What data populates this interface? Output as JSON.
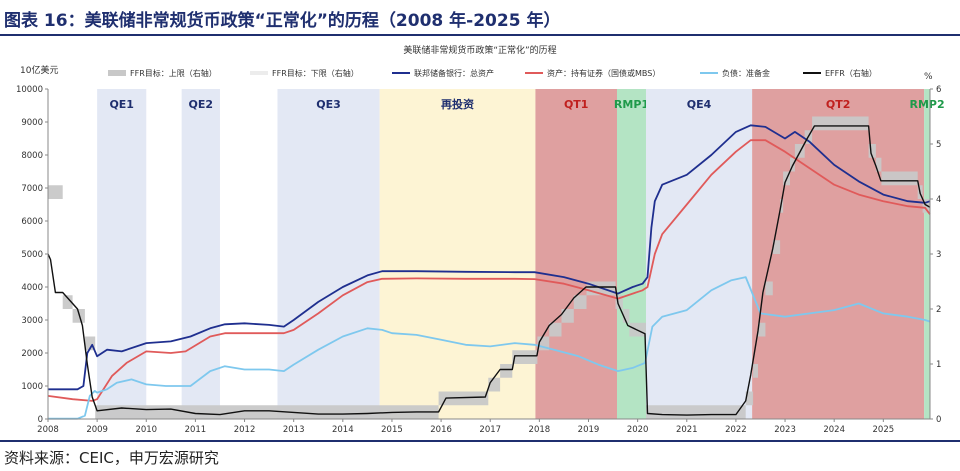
{
  "figure": {
    "title": "图表 16：美联储非常规货币政策“正常化”的历程（2008 年-2025 年）",
    "source": "资料来源：CEIC，申万宏源研究"
  },
  "colors": {
    "title": "#1f2f6f",
    "total_assets": "#1f2f8f",
    "securities": "#e05a5a",
    "reserves": "#7ec8ee",
    "effr": "#111111",
    "ffr_band": "#c8c8c8",
    "qe": "#e3e8f4",
    "reinvest": "#fdf4d4",
    "qt": "#dfa0a0",
    "rmp": "#b4e4c4"
  },
  "chart_data": {
    "type": "line",
    "title": "美联储非常规货币政策“正常化”的历程",
    "ylabel_left": "10亿美元",
    "ylabel_right": "%",
    "xlim": [
      2008.0,
      2025.95
    ],
    "ylim_left": [
      0,
      10000
    ],
    "ylim_right": [
      0,
      6
    ],
    "x_ticks": [
      "2008",
      "2009",
      "2010",
      "2011",
      "2012",
      "2013",
      "2014",
      "2015",
      "2016",
      "2017",
      "2018",
      "2019",
      "2020",
      "2021",
      "2022",
      "2023",
      "2024",
      "2025"
    ],
    "y_ticks_left": [
      "0",
      "1000",
      "2000",
      "3000",
      "4000",
      "5000",
      "6000",
      "7000",
      "8000",
      "9000",
      "10000"
    ],
    "y_ticks_right": [
      "0",
      "1",
      "2",
      "3",
      "4",
      "5",
      "6"
    ],
    "legend_position": "top",
    "periods": [
      {
        "label": "QE1",
        "start": 2009.0,
        "end": 2010.0,
        "kind": "qe"
      },
      {
        "label": "QE2",
        "start": 2010.72,
        "end": 2011.5,
        "kind": "qe"
      },
      {
        "label": "QE3",
        "start": 2012.67,
        "end": 2014.75,
        "kind": "qe"
      },
      {
        "label": "再投资",
        "start": 2014.75,
        "end": 2017.92,
        "kind": "reinvest"
      },
      {
        "label": "QT1",
        "start": 2017.92,
        "end": 2019.58,
        "kind": "qt"
      },
      {
        "label": "RMP1",
        "start": 2019.58,
        "end": 2020.17,
        "kind": "rmp"
      },
      {
        "label": "QE4",
        "start": 2020.17,
        "end": 2022.33,
        "kind": "qe"
      },
      {
        "label": "QT2",
        "start": 2022.33,
        "end": 2025.83,
        "kind": "qt"
      },
      {
        "label": "RMP2",
        "start": 2025.83,
        "end": 2025.95,
        "kind": "rmp"
      }
    ],
    "series": [
      {
        "name": "联邦储备银行：总资产",
        "axis": "left",
        "style": "line",
        "x": [
          2008.0,
          2008.6,
          2008.72,
          2008.8,
          2008.9,
          2009.0,
          2009.2,
          2009.5,
          2010.0,
          2010.5,
          2010.9,
          2011.3,
          2011.6,
          2012.0,
          2012.5,
          2012.8,
          2013.0,
          2013.5,
          2014.0,
          2014.5,
          2014.8,
          2015.5,
          2016.5,
          2017.5,
          2017.9,
          2018.5,
          2019.0,
          2019.6,
          2019.9,
          2020.1,
          2020.2,
          2020.28,
          2020.35,
          2020.5,
          2021.0,
          2021.5,
          2022.0,
          2022.3,
          2022.6,
          2023.0,
          2023.2,
          2023.5,
          2024.0,
          2024.5,
          2025.0,
          2025.5,
          2025.85,
          2025.95
        ],
        "y": [
          900,
          900,
          1000,
          2000,
          2250,
          1900,
          2100,
          2050,
          2300,
          2350,
          2500,
          2750,
          2870,
          2900,
          2850,
          2800,
          3000,
          3550,
          4000,
          4350,
          4480,
          4480,
          4460,
          4450,
          4450,
          4300,
          4100,
          3800,
          4000,
          4100,
          4300,
          5800,
          6600,
          7100,
          7400,
          8000,
          8700,
          8900,
          8850,
          8500,
          8700,
          8400,
          7700,
          7200,
          6800,
          6600,
          6550,
          6600
        ]
      },
      {
        "name": "资产：持有证券（国债或MBS）",
        "axis": "left",
        "style": "line",
        "x": [
          2008.0,
          2008.5,
          2008.9,
          2009.0,
          2009.3,
          2009.6,
          2010.0,
          2010.5,
          2010.8,
          2011.3,
          2011.6,
          2012.0,
          2012.5,
          2012.8,
          2013.0,
          2013.5,
          2014.0,
          2014.5,
          2014.8,
          2015.5,
          2016.5,
          2017.5,
          2017.9,
          2018.5,
          2019.0,
          2019.6,
          2019.9,
          2020.1,
          2020.2,
          2020.35,
          2020.5,
          2021.0,
          2021.5,
          2022.0,
          2022.3,
          2022.6,
          2023.0,
          2023.5,
          2024.0,
          2024.5,
          2025.0,
          2025.5,
          2025.85,
          2025.95
        ],
        "y": [
          700,
          600,
          550,
          600,
          1300,
          1700,
          2050,
          2000,
          2050,
          2500,
          2600,
          2600,
          2600,
          2600,
          2700,
          3200,
          3750,
          4150,
          4250,
          4260,
          4250,
          4250,
          4240,
          4100,
          3900,
          3650,
          3800,
          3900,
          4000,
          5000,
          5600,
          6500,
          7400,
          8100,
          8450,
          8450,
          8100,
          7600,
          7100,
          6800,
          6600,
          6450,
          6400,
          6200
        ]
      },
      {
        "name": "负债：准备金",
        "axis": "left",
        "style": "line",
        "x": [
          2008.0,
          2008.6,
          2008.75,
          2008.85,
          2008.95,
          2009.0,
          2009.2,
          2009.4,
          2009.7,
          2010.0,
          2010.4,
          2010.9,
          2011.3,
          2011.6,
          2012.0,
          2012.5,
          2012.8,
          2013.0,
          2013.5,
          2014.0,
          2014.5,
          2014.8,
          2015.0,
          2015.5,
          2016.0,
          2016.5,
          2017.0,
          2017.5,
          2017.9,
          2018.3,
          2018.8,
          2019.2,
          2019.6,
          2019.9,
          2020.15,
          2020.3,
          2020.5,
          2021.0,
          2021.5,
          2021.9,
          2022.2,
          2022.5,
          2023.0,
          2023.5,
          2024.0,
          2024.5,
          2025.0,
          2025.5,
          2025.85,
          2025.95
        ],
        "y": [
          10,
          10,
          100,
          700,
          850,
          800,
          900,
          1100,
          1200,
          1050,
          1000,
          1000,
          1450,
          1600,
          1500,
          1500,
          1450,
          1650,
          2100,
          2500,
          2750,
          2700,
          2600,
          2550,
          2400,
          2250,
          2200,
          2300,
          2250,
          2100,
          1900,
          1650,
          1450,
          1550,
          1700,
          2800,
          3100,
          3300,
          3900,
          4200,
          4300,
          3200,
          3100,
          3200,
          3300,
          3500,
          3200,
          3100,
          3000,
          2950
        ]
      },
      {
        "name": "EFFR（右轴）",
        "axis": "right",
        "style": "line",
        "x": [
          2008.0,
          2008.05,
          2008.15,
          2008.3,
          2008.5,
          2008.6,
          2008.7,
          2008.8,
          2008.9,
          2009.0,
          2009.5,
          2010.0,
          2010.5,
          2011.0,
          2011.5,
          2012.0,
          2012.5,
          2013.0,
          2013.5,
          2014.0,
          2014.5,
          2015.0,
          2015.5,
          2015.95,
          2016.1,
          2016.9,
          2017.0,
          2017.2,
          2017.45,
          2017.5,
          2017.95,
          2018.0,
          2018.2,
          2018.45,
          2018.7,
          2018.95,
          2019.55,
          2019.6,
          2019.8,
          2020.15,
          2020.2,
          2020.5,
          2021.0,
          2021.5,
          2022.0,
          2022.2,
          2022.3,
          2022.45,
          2022.55,
          2022.75,
          2022.9,
          2023.0,
          2023.15,
          2023.45,
          2023.6,
          2024.7,
          2024.75,
          2024.85,
          2024.95,
          2025.7,
          2025.75,
          2025.85,
          2025.95
        ],
        "y": [
          3.0,
          2.9,
          2.3,
          2.3,
          2.1,
          2.0,
          1.7,
          1.0,
          0.4,
          0.15,
          0.2,
          0.17,
          0.18,
          0.1,
          0.08,
          0.15,
          0.15,
          0.12,
          0.09,
          0.09,
          0.1,
          0.12,
          0.13,
          0.13,
          0.38,
          0.4,
          0.66,
          0.9,
          0.9,
          1.15,
          1.15,
          1.4,
          1.7,
          1.9,
          2.2,
          2.4,
          2.4,
          2.1,
          1.7,
          1.55,
          0.1,
          0.08,
          0.07,
          0.08,
          0.08,
          0.33,
          0.8,
          1.6,
          2.3,
          3.1,
          3.8,
          4.3,
          4.6,
          5.1,
          5.33,
          5.33,
          4.83,
          4.6,
          4.33,
          4.33,
          4.1,
          3.9,
          3.85
        ]
      },
      {
        "name": "FFR目标：上限（右轴）",
        "axis": "right",
        "style": "area_band",
        "lower_series": "FFR目标：下限（右轴）",
        "x": [
          2008.0,
          2008.3,
          2008.5,
          2008.75,
          2008.96,
          2015.95,
          2016.96,
          2017.2,
          2017.45,
          2017.96,
          2018.2,
          2018.45,
          2018.7,
          2018.96,
          2019.55,
          2019.7,
          2019.83,
          2020.17,
          2020.2,
          2022.2,
          2022.35,
          2022.45,
          2022.6,
          2022.75,
          2022.9,
          2022.96,
          2023.1,
          2023.2,
          2023.4,
          2023.55,
          2024.7,
          2024.85,
          2024.96,
          2025.7,
          2025.8,
          2025.95
        ],
        "y": [
          4.25,
          2.25,
          2.0,
          1.5,
          0.25,
          0.5,
          0.75,
          1.0,
          1.25,
          1.5,
          1.75,
          2.0,
          2.25,
          2.5,
          2.25,
          2.0,
          1.75,
          0.25,
          0.25,
          0.5,
          1.0,
          1.75,
          2.5,
          3.25,
          4.0,
          4.5,
          4.75,
          5.0,
          5.25,
          5.5,
          5.0,
          4.75,
          4.5,
          4.25,
          4.0,
          4.0
        ]
      },
      {
        "name": "FFR目标：下限（右轴）",
        "axis": "right",
        "style": "area_band",
        "x": [
          2008.0,
          2008.3,
          2008.5,
          2008.75,
          2008.96,
          2015.95,
          2016.96,
          2017.2,
          2017.45,
          2017.96,
          2018.2,
          2018.45,
          2018.7,
          2018.96,
          2019.55,
          2019.7,
          2019.83,
          2020.17,
          2020.2,
          2022.2,
          2022.35,
          2022.45,
          2022.6,
          2022.75,
          2022.9,
          2022.96,
          2023.1,
          2023.2,
          2023.4,
          2023.55,
          2024.7,
          2024.85,
          2024.96,
          2025.7,
          2025.8,
          2025.95
        ],
        "y": [
          4.0,
          2.0,
          1.75,
          1.25,
          0.0,
          0.25,
          0.5,
          0.75,
          1.0,
          1.25,
          1.5,
          1.75,
          2.0,
          2.25,
          2.0,
          1.75,
          1.5,
          0.0,
          0.0,
          0.25,
          0.75,
          1.5,
          2.25,
          3.0,
          3.75,
          4.25,
          4.5,
          4.75,
          5.0,
          5.25,
          4.75,
          4.5,
          4.25,
          4.0,
          3.75,
          3.75
        ]
      }
    ]
  }
}
